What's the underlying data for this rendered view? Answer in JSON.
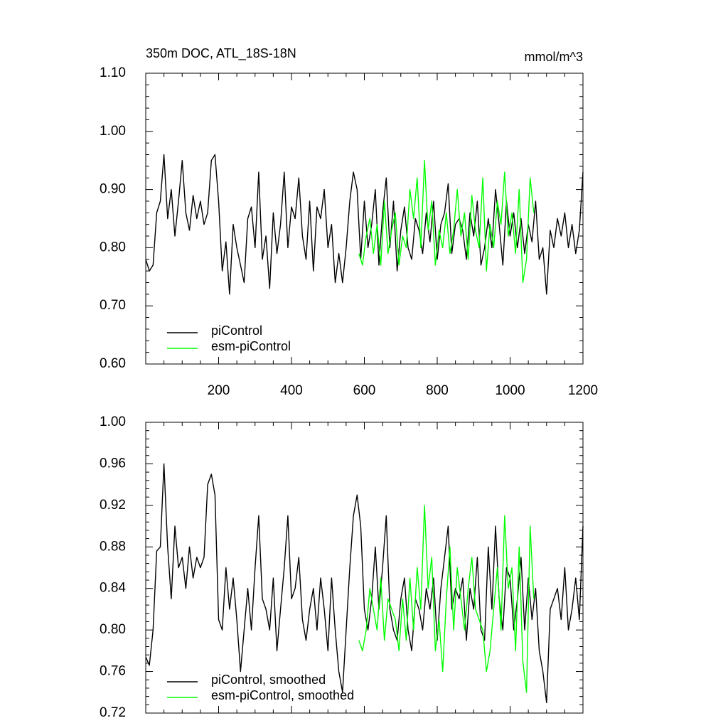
{
  "chart_data": [
    {
      "type": "line",
      "title": "350m DOC, ATL_18S-18N",
      "subtitle": "mmol/m^3",
      "xlim": [
        0,
        1200
      ],
      "xticks": [
        200,
        400,
        600,
        800,
        1000,
        1200
      ],
      "xtick_labels": true,
      "ylim": [
        0.6,
        1.1
      ],
      "yticks": [
        {
          "value": 0.6,
          "label": "0.60"
        },
        {
          "value": 0.7,
          "label": "0.70"
        },
        {
          "value": 0.8,
          "label": "0.80"
        },
        {
          "value": 0.9,
          "label": "0.90"
        },
        {
          "value": 1.0,
          "label": "1.00"
        },
        {
          "value": 1.1,
          "label": "1.10"
        }
      ],
      "legend": "lower left",
      "series": [
        {
          "name": "piControl",
          "color": "#000000",
          "x": [
            0,
            10,
            20,
            30,
            40,
            50,
            60,
            70,
            80,
            90,
            100,
            110,
            120,
            130,
            140,
            150,
            160,
            170,
            180,
            190,
            200,
            210,
            220,
            230,
            240,
            250,
            260,
            270,
            280,
            290,
            300,
            310,
            320,
            330,
            340,
            350,
            360,
            370,
            380,
            390,
            400,
            410,
            420,
            430,
            440,
            450,
            460,
            470,
            480,
            490,
            500,
            510,
            520,
            530,
            540,
            550,
            560,
            570,
            580,
            590,
            600,
            610,
            620,
            630,
            640,
            650,
            660,
            670,
            680,
            690,
            700,
            710,
            720,
            730,
            740,
            750,
            760,
            770,
            780,
            790,
            800,
            810,
            820,
            830,
            840,
            850,
            860,
            870,
            880,
            890,
            900,
            910,
            920,
            930,
            940,
            950,
            960,
            970,
            980,
            990,
            1000,
            1010,
            1020,
            1030,
            1040,
            1050,
            1060,
            1070,
            1080,
            1090,
            1100,
            1110,
            1120,
            1130,
            1140,
            1150,
            1160,
            1170,
            1180,
            1190,
            1200
          ],
          "values": [
            0.78,
            0.76,
            0.77,
            0.86,
            0.88,
            0.96,
            0.85,
            0.9,
            0.82,
            0.88,
            0.95,
            0.86,
            0.83,
            0.89,
            0.85,
            0.88,
            0.84,
            0.86,
            0.95,
            0.96,
            0.88,
            0.76,
            0.81,
            0.72,
            0.84,
            0.8,
            0.77,
            0.74,
            0.85,
            0.87,
            0.8,
            0.93,
            0.78,
            0.82,
            0.73,
            0.86,
            0.79,
            0.84,
            0.93,
            0.8,
            0.87,
            0.85,
            0.92,
            0.82,
            0.78,
            0.88,
            0.76,
            0.87,
            0.85,
            0.9,
            0.8,
            0.84,
            0.74,
            0.79,
            0.74,
            0.8,
            0.88,
            0.93,
            0.9,
            0.78,
            0.88,
            0.8,
            0.84,
            0.9,
            0.77,
            0.86,
            0.92,
            0.8,
            0.88,
            0.76,
            0.83,
            0.87,
            0.8,
            0.78,
            0.85,
            0.83,
            0.79,
            0.86,
            0.81,
            0.88,
            0.78,
            0.84,
            0.86,
            0.91,
            0.79,
            0.84,
            0.85,
            0.83,
            0.78,
            0.86,
            0.82,
            0.88,
            0.77,
            0.8,
            0.85,
            0.8,
            0.9,
            0.84,
            0.77,
            0.88,
            0.82,
            0.86,
            0.8,
            0.85,
            0.79,
            0.84,
            0.81,
            0.88,
            0.78,
            0.8,
            0.72,
            0.83,
            0.8,
            0.85,
            0.82,
            0.86,
            0.8,
            0.84,
            0.79,
            0.83,
            0.93
          ]
        },
        {
          "name": "esm-piControl",
          "color": "#00ff00",
          "x": [
            585,
            595,
            605,
            615,
            625,
            635,
            645,
            655,
            665,
            675,
            685,
            695,
            705,
            715,
            725,
            735,
            745,
            755,
            765,
            775,
            785,
            795,
            805,
            815,
            825,
            835,
            845,
            855,
            865,
            875,
            885,
            895,
            905,
            915,
            925,
            935,
            945,
            955,
            965,
            975,
            985,
            995,
            1005,
            1015,
            1025,
            1035,
            1045,
            1055,
            1065
          ],
          "values": [
            0.79,
            0.77,
            0.82,
            0.85,
            0.79,
            0.84,
            0.77,
            0.88,
            0.79,
            0.83,
            0.86,
            0.77,
            0.82,
            0.8,
            0.9,
            0.85,
            0.92,
            0.8,
            0.95,
            0.83,
            0.88,
            0.77,
            0.83,
            0.8,
            0.86,
            0.79,
            0.83,
            0.9,
            0.82,
            0.86,
            0.78,
            0.89,
            0.83,
            0.8,
            0.92,
            0.76,
            0.84,
            0.8,
            0.88,
            0.84,
            0.93,
            0.82,
            0.86,
            0.79,
            0.9,
            0.74,
            0.78,
            0.92,
            0.86
          ]
        }
      ]
    },
    {
      "type": "line",
      "xlim": [
        0,
        1200
      ],
      "xticks": [
        200,
        400,
        600,
        800,
        1000,
        1200
      ],
      "xtick_labels": false,
      "ylim": [
        0.72,
        1.0
      ],
      "yticks": [
        0.72,
        0.76,
        {
          "value": 0.8,
          "label": "0.80"
        },
        0.84,
        0.88,
        0.92,
        0.96,
        {
          "value": 1.0,
          "label": "1.00"
        }
      ],
      "legend": "lower left",
      "series": [
        {
          "name": "piControl, smoothed",
          "color": "#000000",
          "x": [
            0,
            10,
            20,
            30,
            40,
            50,
            60,
            70,
            80,
            90,
            100,
            110,
            120,
            130,
            140,
            150,
            160,
            170,
            180,
            190,
            200,
            210,
            220,
            230,
            240,
            250,
            260,
            270,
            280,
            290,
            300,
            310,
            320,
            330,
            340,
            350,
            360,
            370,
            380,
            390,
            400,
            410,
            420,
            430,
            440,
            450,
            460,
            470,
            480,
            490,
            500,
            510,
            520,
            530,
            540,
            550,
            560,
            570,
            580,
            590,
            600,
            610,
            620,
            630,
            640,
            650,
            660,
            670,
            680,
            690,
            700,
            710,
            720,
            730,
            740,
            750,
            760,
            770,
            780,
            790,
            800,
            810,
            820,
            830,
            840,
            850,
            860,
            870,
            880,
            890,
            900,
            910,
            920,
            930,
            940,
            950,
            960,
            970,
            980,
            990,
            1000,
            1010,
            1020,
            1030,
            1040,
            1050,
            1060,
            1070,
            1080,
            1090,
            1100,
            1110,
            1120,
            1130,
            1140,
            1150,
            1160,
            1170,
            1180,
            1190,
            1200
          ],
          "values": [
            0.774,
            0.766,
            0.8,
            0.876,
            0.88,
            0.96,
            0.88,
            0.83,
            0.9,
            0.86,
            0.87,
            0.84,
            0.88,
            0.85,
            0.87,
            0.86,
            0.87,
            0.94,
            0.95,
            0.93,
            0.81,
            0.8,
            0.86,
            0.82,
            0.85,
            0.81,
            0.76,
            0.8,
            0.84,
            0.8,
            0.86,
            0.91,
            0.83,
            0.82,
            0.8,
            0.85,
            0.78,
            0.82,
            0.86,
            0.91,
            0.83,
            0.84,
            0.87,
            0.81,
            0.79,
            0.82,
            0.84,
            0.8,
            0.85,
            0.82,
            0.78,
            0.85,
            0.8,
            0.76,
            0.74,
            0.8,
            0.86,
            0.91,
            0.93,
            0.9,
            0.82,
            0.8,
            0.83,
            0.88,
            0.82,
            0.86,
            0.91,
            0.82,
            0.8,
            0.79,
            0.83,
            0.85,
            0.8,
            0.78,
            0.83,
            0.82,
            0.8,
            0.84,
            0.82,
            0.85,
            0.79,
            0.84,
            0.87,
            0.9,
            0.82,
            0.84,
            0.83,
            0.85,
            0.79,
            0.84,
            0.82,
            0.87,
            0.8,
            0.79,
            0.88,
            0.82,
            0.9,
            0.83,
            0.8,
            0.86,
            0.85,
            0.8,
            0.83,
            0.87,
            0.8,
            0.85,
            0.81,
            0.84,
            0.78,
            0.76,
            0.73,
            0.82,
            0.83,
            0.84,
            0.81,
            0.86,
            0.8,
            0.82,
            0.85,
            0.81,
            0.9
          ]
        },
        {
          "name": "esm-piControl, smoothed",
          "color": "#00ff00",
          "x": [
            585,
            595,
            605,
            615,
            625,
            635,
            645,
            655,
            665,
            675,
            685,
            695,
            705,
            715,
            725,
            735,
            745,
            755,
            765,
            775,
            785,
            795,
            805,
            815,
            825,
            835,
            845,
            855,
            865,
            875,
            885,
            895,
            905,
            915,
            925,
            935,
            945,
            955,
            965,
            975,
            985,
            995,
            1005,
            1015,
            1025,
            1035,
            1045,
            1055,
            1065
          ],
          "values": [
            0.79,
            0.78,
            0.8,
            0.84,
            0.82,
            0.8,
            0.85,
            0.79,
            0.83,
            0.82,
            0.81,
            0.78,
            0.83,
            0.79,
            0.85,
            0.8,
            0.86,
            0.82,
            0.92,
            0.84,
            0.87,
            0.78,
            0.81,
            0.76,
            0.83,
            0.88,
            0.8,
            0.86,
            0.83,
            0.8,
            0.84,
            0.87,
            0.82,
            0.81,
            0.8,
            0.76,
            0.78,
            0.82,
            0.86,
            0.8,
            0.91,
            0.84,
            0.86,
            0.78,
            0.88,
            0.77,
            0.74,
            0.9,
            0.83
          ]
        }
      ]
    }
  ]
}
